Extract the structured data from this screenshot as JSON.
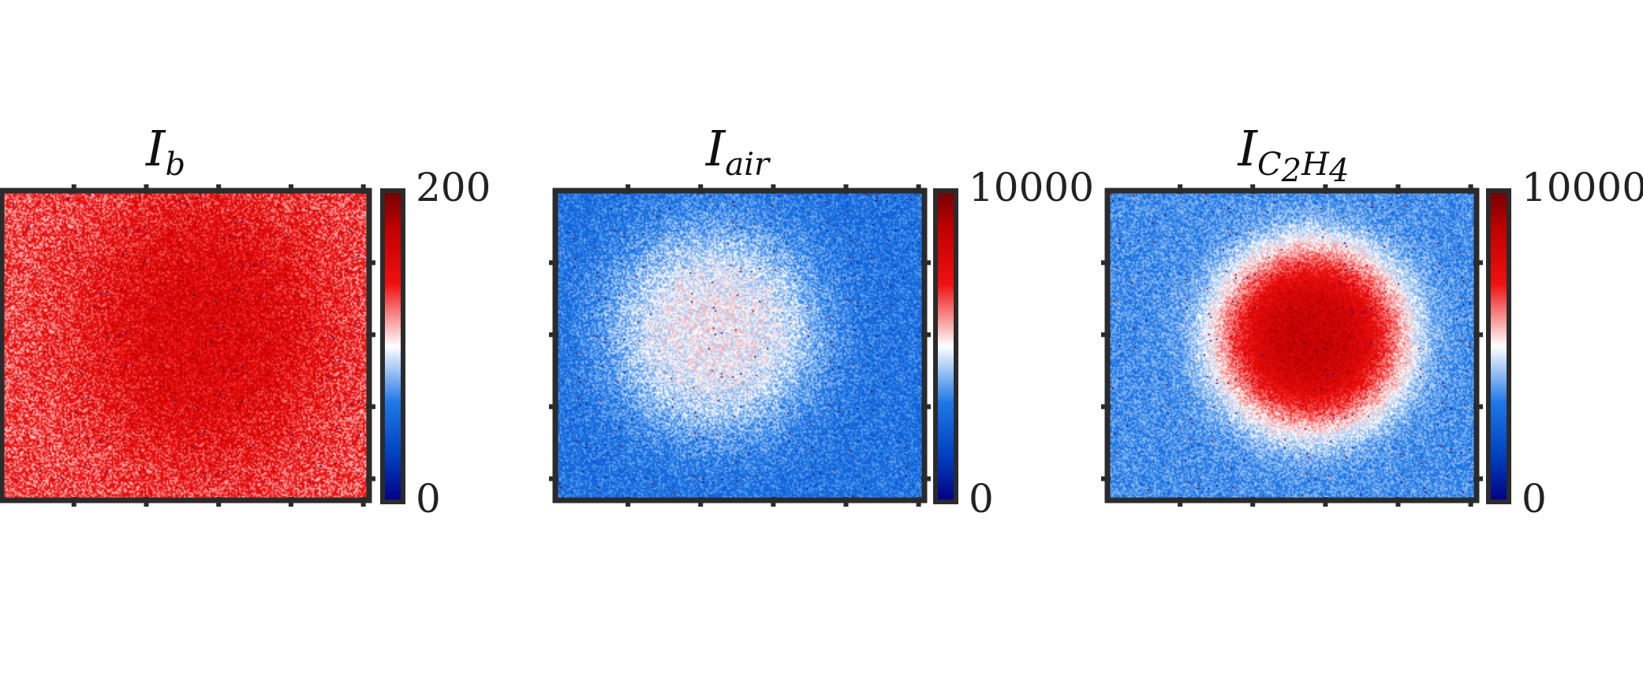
{
  "chart_data": [
    {
      "type": "heatmap",
      "title": {
        "main": "I",
        "subscript": "b"
      },
      "colorbar": {
        "min_label": "0",
        "max_label": "200",
        "min": 0,
        "max": 200
      },
      "field": {
        "background": 0.66,
        "peak": 0.78,
        "center": [
          0.55,
          0.45
        ],
        "sigma": [
          0.35,
          0.45
        ],
        "noise": 0.12
      },
      "ticks": {
        "top": 5,
        "bottom": 5,
        "left": 0,
        "right": 4
      }
    },
    {
      "type": "heatmap",
      "title": {
        "main": "I",
        "subscript": "air"
      },
      "colorbar": {
        "min_label": "0",
        "max_label": "10000",
        "min": 0,
        "max": 10000
      },
      "field": {
        "background": 0.3,
        "peak": 0.5,
        "center": [
          0.43,
          0.45
        ],
        "sigma": [
          0.3,
          0.35
        ],
        "noise": 0.08
      },
      "ticks": {
        "top": 5,
        "bottom": 5,
        "left": 4,
        "right": 4
      }
    },
    {
      "type": "heatmap",
      "title": {
        "main": "I",
        "subscript": "C",
        "subscript2": "2",
        "subscript3": "H",
        "subscript4": "4"
      },
      "colorbar": {
        "min_label": "0",
        "max_label": "10000",
        "min": 0,
        "max": 10000
      },
      "field": {
        "background": 0.35,
        "peak": 0.85,
        "center": [
          0.55,
          0.47
        ],
        "sigma": [
          0.26,
          0.3
        ],
        "noise": 0.07
      },
      "ticks": {
        "top": 5,
        "bottom": 5,
        "left": 4,
        "right": 4
      }
    }
  ],
  "colormap": {
    "name": "blue-white-red",
    "stops": [
      "#000080",
      "#0040c0",
      "#1e78e6",
      "#ffffff",
      "#ee1010",
      "#c00000",
      "#700000"
    ]
  }
}
